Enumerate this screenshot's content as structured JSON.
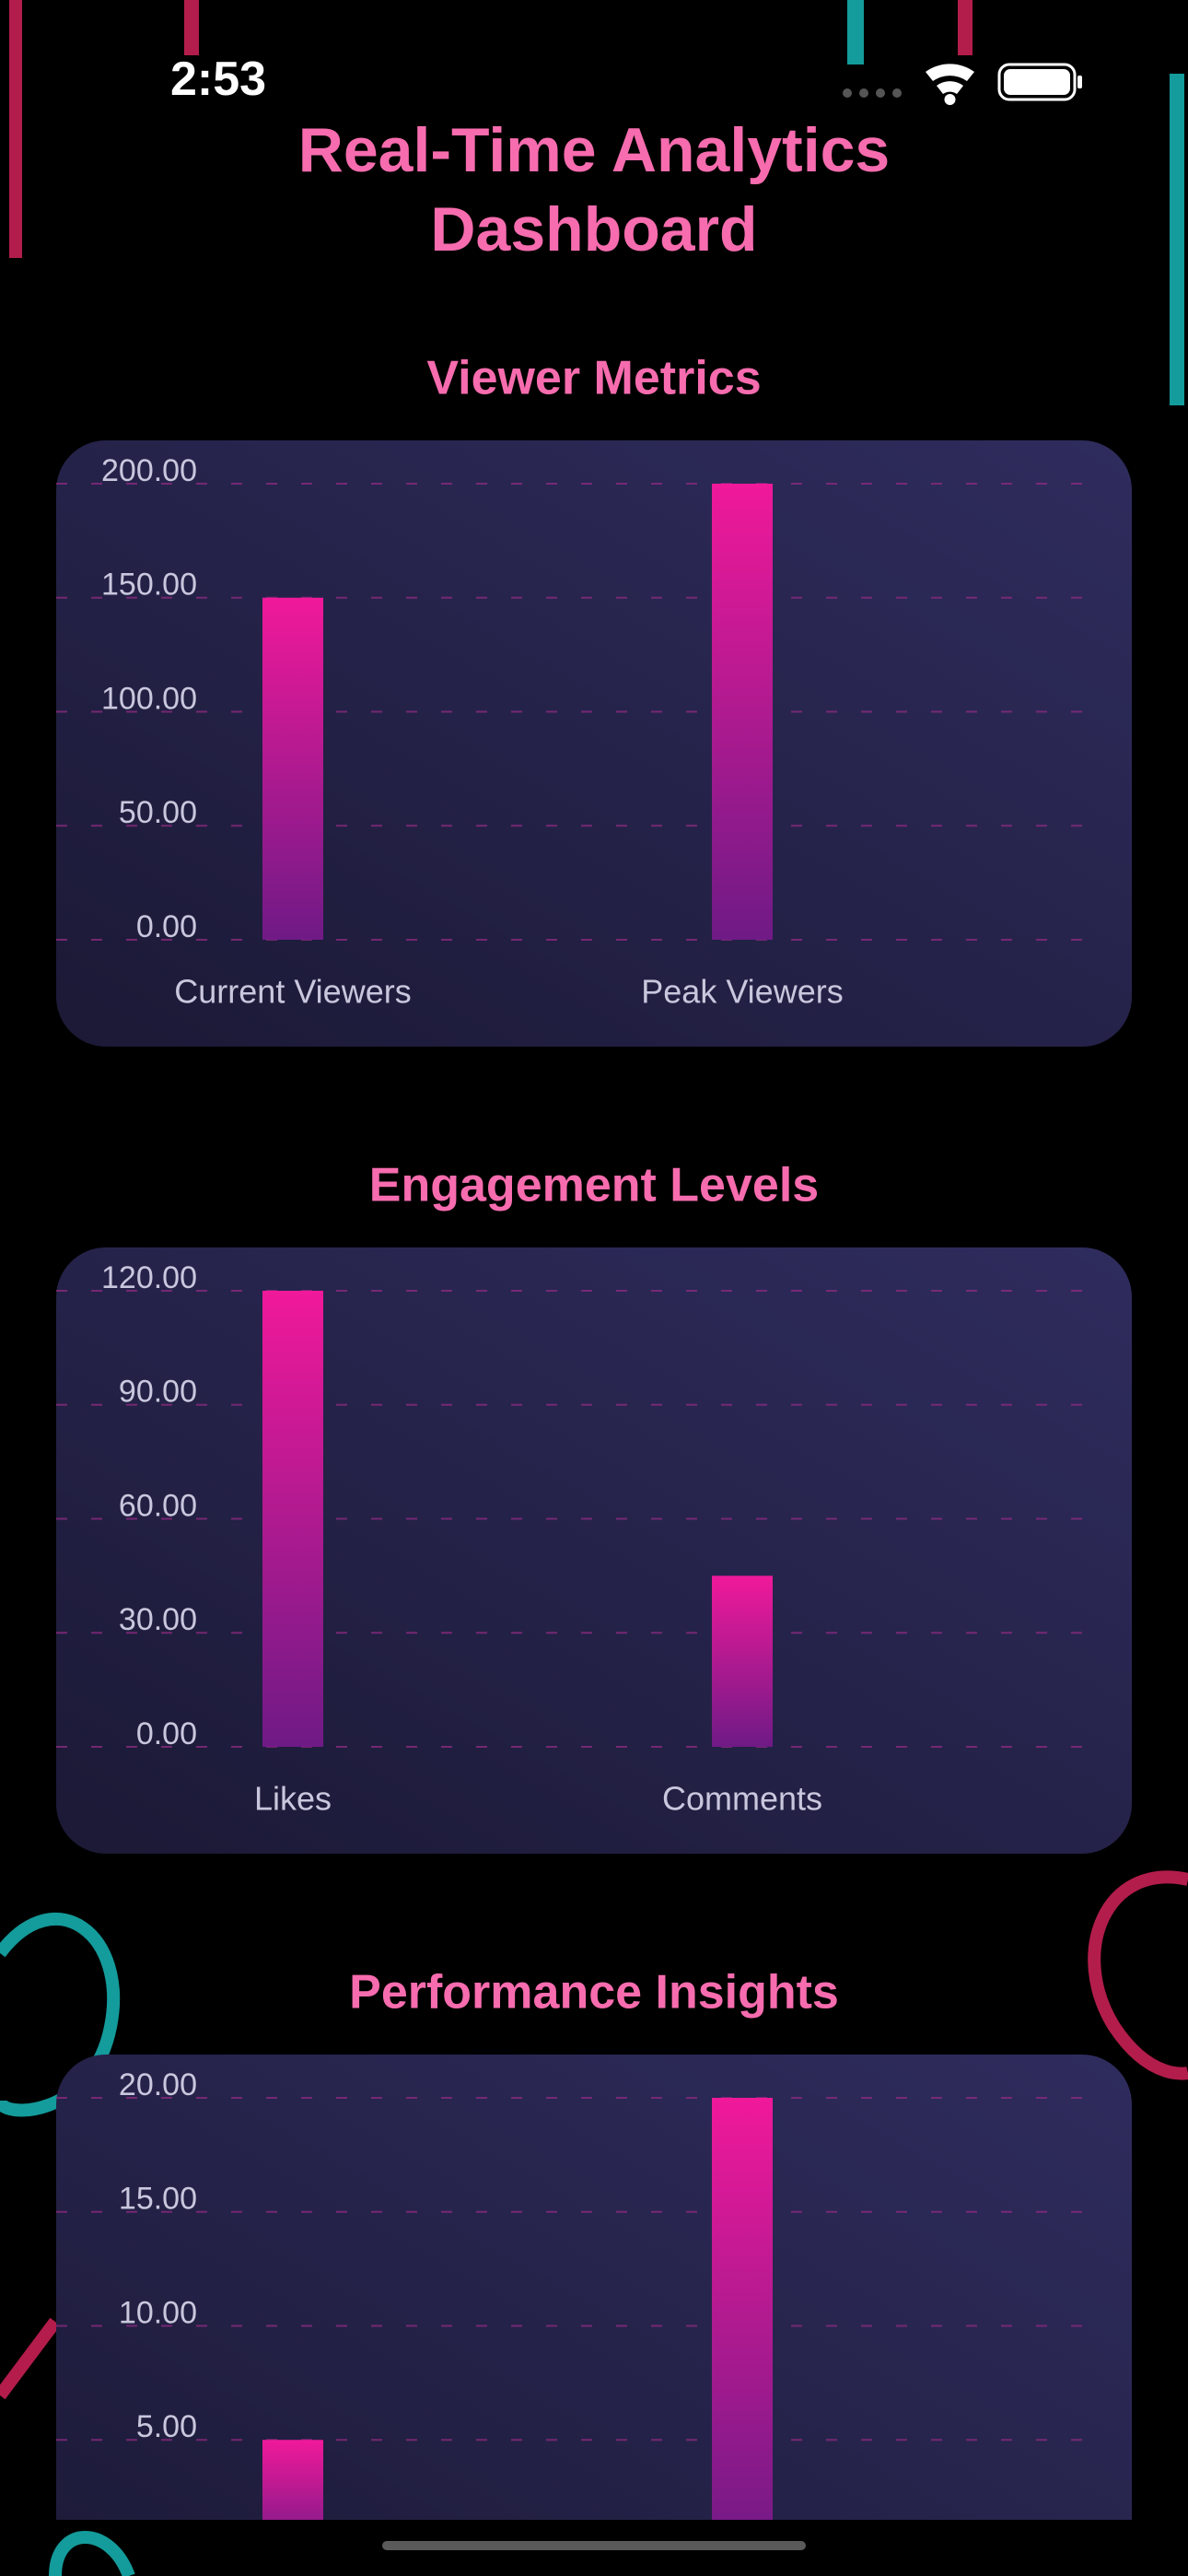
{
  "status_bar": {
    "time": "2:53"
  },
  "header": {
    "title": "Real-Time Analytics Dashboard"
  },
  "chart_data": [
    {
      "type": "bar",
      "title": "Viewer Metrics",
      "categories": [
        "Current Viewers",
        "Peak Viewers"
      ],
      "values": [
        150,
        200
      ],
      "ylim": [
        0,
        200
      ],
      "yticks": [
        {
          "value": 0,
          "label": "0.00"
        },
        {
          "value": 50,
          "label": "50.00"
        },
        {
          "value": 100,
          "label": "100.00"
        },
        {
          "value": 150,
          "label": "150.00"
        },
        {
          "value": 200,
          "label": "200.00"
        }
      ],
      "grid": true,
      "color": "#f0199a"
    },
    {
      "type": "bar",
      "title": "Engagement Levels",
      "categories": [
        "Likes",
        "Comments"
      ],
      "values": [
        120,
        45
      ],
      "ylim": [
        0,
        120
      ],
      "yticks": [
        {
          "value": 0,
          "label": "0.00"
        },
        {
          "value": 30,
          "label": "30.00"
        },
        {
          "value": 60,
          "label": "60.00"
        },
        {
          "value": 90,
          "label": "90.00"
        },
        {
          "value": 120,
          "label": "120.00"
        }
      ],
      "grid": true,
      "color": "#f0199a"
    },
    {
      "type": "bar",
      "title": "Performance Insights",
      "categories": [
        null,
        null
      ],
      "values": [
        5,
        20
      ],
      "ylim": [
        0,
        20
      ],
      "yticks": [
        {
          "value": 5,
          "label": "5.00"
        },
        {
          "value": 10,
          "label": "10.00"
        },
        {
          "value": 15,
          "label": "15.00"
        },
        {
          "value": 20,
          "label": "20.00"
        }
      ],
      "grid": true,
      "color": "#f0199a"
    }
  ]
}
